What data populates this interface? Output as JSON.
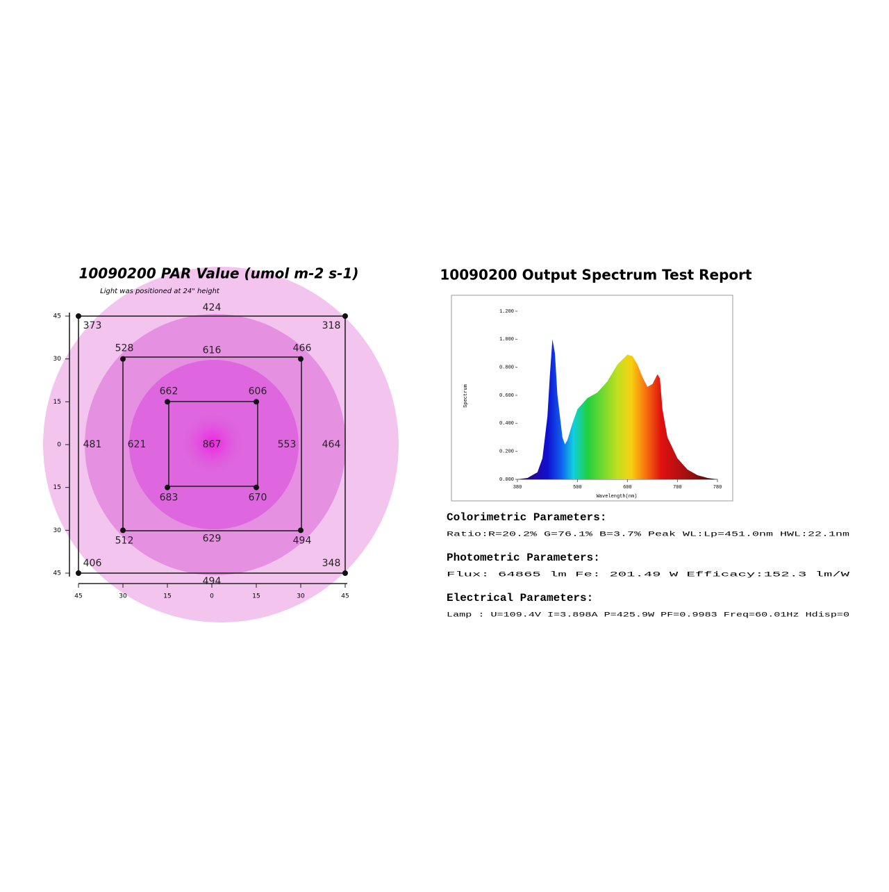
{
  "chart_data": [
    {
      "type": "par-map",
      "title": "10090200 PAR Value (umol m-2 s-1)",
      "subtitle": "Light was positioned at 24\" height",
      "x": [
        -45,
        0,
        45,
        -45,
        45,
        -45,
        0,
        45,
        -30,
        0,
        30,
        -30,
        30,
        -30,
        0,
        30,
        -15,
        15,
        -15,
        15,
        0
      ],
      "y": [
        45,
        45,
        45,
        0,
        0,
        -45,
        -45,
        -45,
        30,
        30,
        30,
        0,
        0,
        -30,
        -30,
        -30,
        15,
        15,
        -15,
        -15,
        0
      ],
      "values": [
        373,
        424,
        318,
        481,
        464,
        406,
        494,
        348,
        528,
        616,
        466,
        621,
        553,
        512,
        629,
        494,
        662,
        606,
        683,
        670,
        867
      ],
      "xlim": [
        -45,
        45
      ],
      "ylim": [
        -45,
        45
      ],
      "xticks": [
        {
          "value": -45,
          "label": "45"
        },
        {
          "value": -30,
          "label": "30"
        },
        {
          "value": -15,
          "label": "15"
        },
        0,
        15,
        30,
        45
      ],
      "yticks": [
        45,
        30,
        15,
        0,
        {
          "value": -15,
          "label": "15"
        },
        {
          "value": -30,
          "label": "30"
        },
        {
          "value": -45,
          "label": "45"
        }
      ]
    },
    {
      "type": "area",
      "title": "10090200 Output Spectrum Test Report",
      "x_label": "Wavelength(nm)",
      "y_label": "Spectrum",
      "x": [
        380,
        400,
        420,
        430,
        440,
        445,
        450,
        455,
        460,
        470,
        475,
        480,
        490,
        500,
        520,
        540,
        560,
        580,
        600,
        610,
        620,
        630,
        640,
        650,
        660,
        665,
        670,
        680,
        700,
        720,
        740,
        760,
        780
      ],
      "values": [
        0,
        0.01,
        0.05,
        0.15,
        0.45,
        0.75,
        1.0,
        0.9,
        0.6,
        0.3,
        0.25,
        0.28,
        0.4,
        0.5,
        0.58,
        0.62,
        0.7,
        0.82,
        0.89,
        0.88,
        0.82,
        0.73,
        0.66,
        0.68,
        0.75,
        0.72,
        0.5,
        0.3,
        0.15,
        0.07,
        0.03,
        0.01,
        0
      ],
      "xlim": [
        380,
        780
      ],
      "ylim": [
        0,
        1.2
      ],
      "xticks": [
        380,
        500,
        600,
        700,
        780
      ],
      "yticks": [
        {
          "value": 0,
          "label": "0.000"
        },
        {
          "value": 0.2,
          "label": "0.200"
        },
        {
          "value": 0.4,
          "label": "0.400"
        },
        {
          "value": 0.6,
          "label": "0.600"
        },
        {
          "value": 0.8,
          "label": "0.800"
        },
        {
          "value": 1.0,
          "label": "1.000"
        },
        {
          "value": 1.2,
          "label": "1.200"
        }
      ]
    }
  ],
  "report": {
    "sections": [
      {
        "heading": "Colorimetric Parameters:",
        "line": "Ratio:R=20.2% G=76.1% B=3.7%  Peak WL:Lp=451.0nm  HWL:22.1nm"
      },
      {
        "heading": "Photometric Parameters:",
        "line": "Flux: 64865 lm   Fe: 201.49 W   Efficacy:152.3 lm/W"
      },
      {
        "heading": "Electrical Parameters:",
        "line": "Lamp     : U=109.4V  I=3.898A  P=425.9W PF=0.9983  Freq=60.01Hz Hdisp=0"
      }
    ]
  }
}
